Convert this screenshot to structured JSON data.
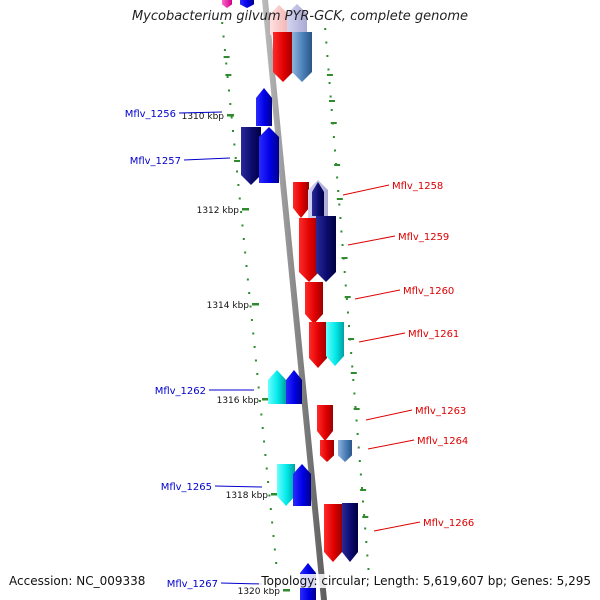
{
  "title": "Mycobacterium gilvum PYR-GCK, complete genome",
  "accession": "Accession: NC_009338",
  "topology": "Topology: circular; Length: 5,619,607 bp; Genes: 5,295",
  "colors": {
    "backbone": "#8c8c8c",
    "tick": "#2e8b2e",
    "minus_label": "#0000cc",
    "plus_label": "#dd0000"
  },
  "ticks": [
    {
      "label": "1310 kbp"
    },
    {
      "label": "1312 kbp"
    },
    {
      "label": "1314 kbp"
    },
    {
      "label": "1316 kbp"
    },
    {
      "label": "1318 kbp"
    },
    {
      "label": "1320 kbp"
    }
  ],
  "genes_minus": [
    {
      "label": "Mflv_1256"
    },
    {
      "label": "Mflv_1257"
    },
    {
      "label": "Mflv_1262"
    },
    {
      "label": "Mflv_1265"
    },
    {
      "label": "Mflv_1267"
    }
  ],
  "genes_plus": [
    {
      "label": "Mflv_1258"
    },
    {
      "label": "Mflv_1259"
    },
    {
      "label": "Mflv_1260"
    },
    {
      "label": "Mflv_1261"
    },
    {
      "label": "Mflv_1263"
    },
    {
      "label": "Mflv_1264"
    },
    {
      "label": "Mflv_1266"
    }
  ]
}
